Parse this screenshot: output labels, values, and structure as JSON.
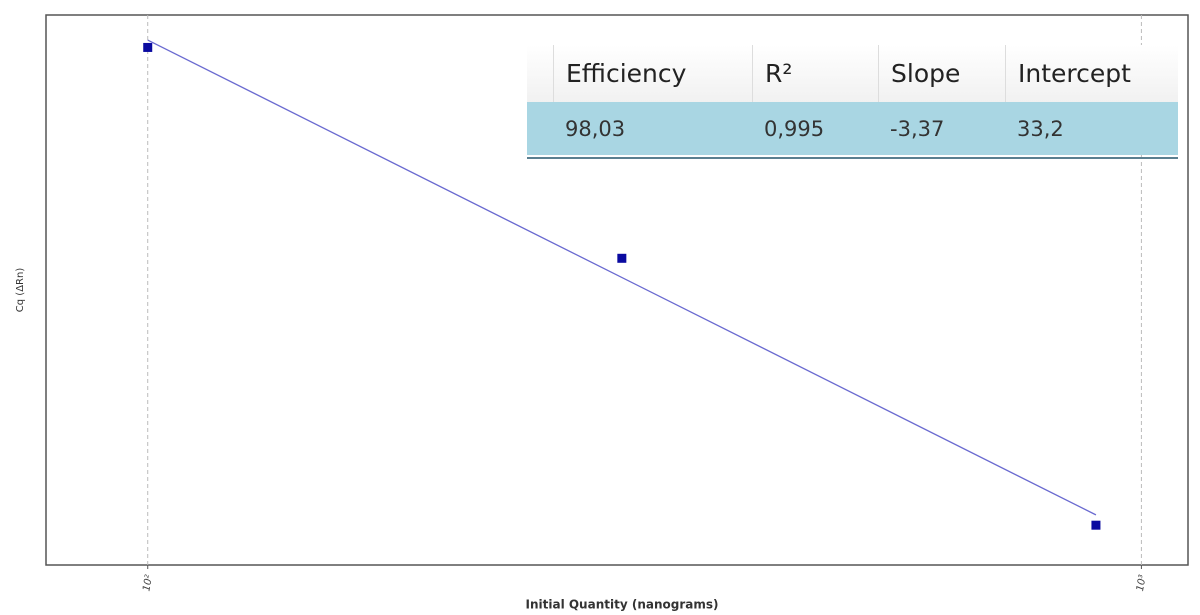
{
  "chart_data": {
    "type": "scatter",
    "xlabel": "Initial Quantity (nanograms)",
    "ylabel": "Cq (ΔRn)",
    "x": [
      100,
      300,
      900
    ],
    "series": [
      {
        "color": "#0a0aa0",
        "values": [
          26.41,
          24.98,
          23.17
        ]
      }
    ],
    "fit": {
      "color": "#6a6ad0",
      "x": [
        100,
        900
      ],
      "values": [
        26.46,
        23.24
      ]
    },
    "xscale": "log",
    "xlim": [
      79,
      1114
    ],
    "xticks": [
      {
        "value": 100,
        "label": "10²"
      },
      {
        "value": 1000,
        "label": "10³"
      }
    ],
    "ylim": [
      22.9,
      26.63
    ],
    "grid": true
  },
  "table": {
    "header": [
      "Efficiency",
      "R²",
      "Slope",
      "Intercept"
    ],
    "rows": [
      [
        "98,03",
        "0,995",
        "-3,37",
        "33,2"
      ]
    ]
  }
}
